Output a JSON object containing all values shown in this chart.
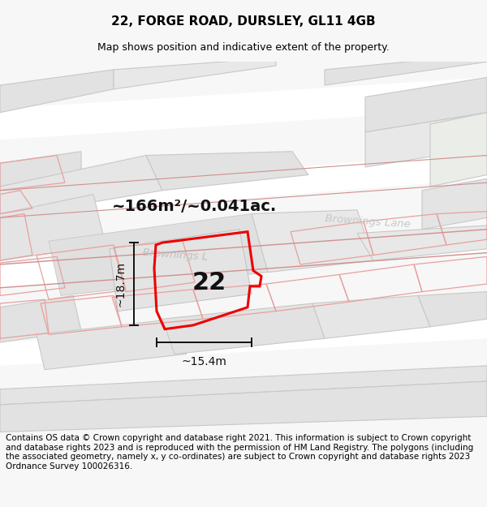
{
  "title": "22, FORGE ROAD, DURSLEY, GL11 4GB",
  "subtitle": "Map shows position and indicative extent of the property.",
  "footer": "Contains OS data © Crown copyright and database right 2021. This information is subject to Crown copyright and database rights 2023 and is reproduced with the permission of HM Land Registry. The polygons (including the associated geometry, namely x, y co-ordinates) are subject to Crown copyright and database rights 2023 Ordnance Survey 100026316.",
  "area_label": "~166m²/~0.041ac.",
  "width_label": "~15.4m",
  "height_label": "~18.7m",
  "number_label": "22",
  "bg_color": "#f7f7f7",
  "map_bg": "#f0f0f0",
  "building_fill": "#e2e2e2",
  "building_edge": "#c8c8c8",
  "road_fill": "#ffffff",
  "pink_edge": "#e8a0a0",
  "boundary_color": "#ee0000",
  "dim_color": "#111111",
  "road_label_color": "#b8b8b8",
  "title_fontsize": 11,
  "subtitle_fontsize": 9,
  "footer_fontsize": 7.5,
  "area_fontsize": 14,
  "number_fontsize": 22,
  "dim_fontsize": 10
}
